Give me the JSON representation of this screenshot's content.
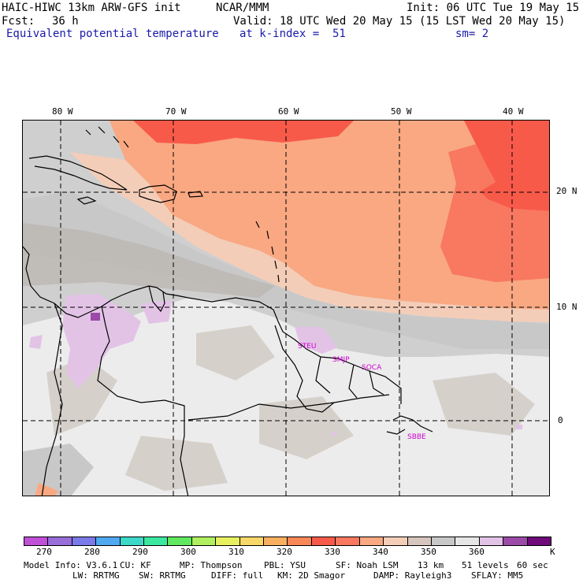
{
  "header": {
    "model_title": "HAIC-HIWC 13km ARW-GFS init",
    "org": "NCAR/MMM",
    "init": "Init: 06 UTC Tue 19 May 15",
    "fcst_label": "Fcst:",
    "fcst_value": "36 h",
    "valid": "Valid: 18 UTC Wed 20 May 15 (15 LST Wed 20 May 15)",
    "field_name": "Equivalent potential temperature",
    "level": "at k-index =  51",
    "smoothing": "sm= 2"
  },
  "map": {
    "lon_labels": [
      "80 W",
      "70 W",
      "60 W",
      "50 W",
      "40 W"
    ],
    "lat_labels": [
      "20 N",
      "10 N",
      "0"
    ],
    "stations": [
      "STEU",
      "SMJP",
      "SOCA",
      "SBBE"
    ],
    "colors": {
      "ocean_warm": "#f9a882",
      "hot": "#f85a4a",
      "hot2": "#f87860",
      "land_light": "#ececec",
      "gray": "#cfcfcf",
      "gray_dark": "#b9b3ae",
      "purple_light": "#d9b8e0",
      "purple": "#9b4aa8"
    }
  },
  "colorbar": {
    "colors": [
      "#c050d8",
      "#9a6ed8",
      "#7a7ae8",
      "#50a8f0",
      "#3cd8c8",
      "#3ce8a0",
      "#60e860",
      "#b0f060",
      "#e8f060",
      "#f8d868",
      "#f8b060",
      "#f88858",
      "#f85a4a",
      "#f87860",
      "#f9a882",
      "#f4cdb8",
      "#d6c6bd",
      "#c8c8c8",
      "#e6e6e6",
      "#e2c3e6",
      "#9b4aa8",
      "#6e0a7a"
    ],
    "labels": [
      "270",
      "280",
      "290",
      "300",
      "310",
      "320",
      "330",
      "340",
      "350",
      "360",
      "K"
    ]
  },
  "footer": {
    "line1": [
      "Model Info: V3.6.1",
      "CU: KF",
      "MP: Thompson",
      "PBL: YSU",
      "SF: Noah LSM",
      "13 km",
      "51 levels",
      "60 sec"
    ],
    "line2": [
      "LW: RRTMG",
      "SW: RRTMG",
      "DIFF: full",
      "KM: 2D Smagor",
      "DAMP: Rayleigh3",
      "SFLAY: MM5"
    ]
  }
}
